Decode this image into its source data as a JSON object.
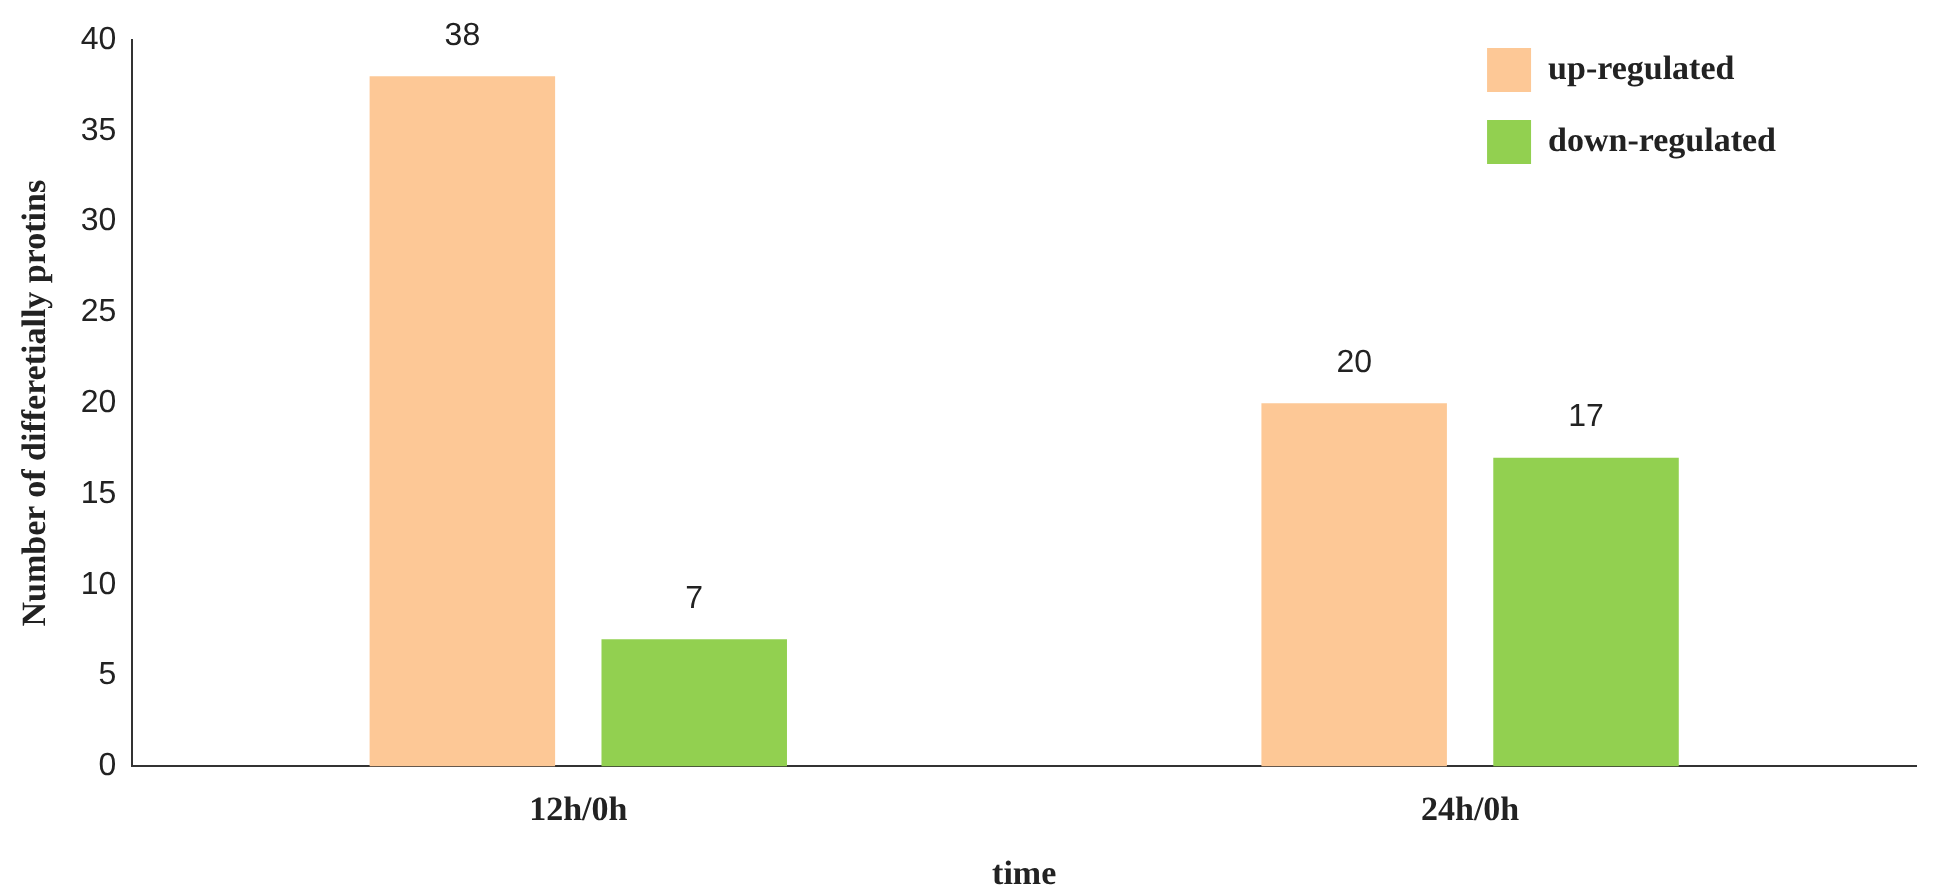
{
  "chart_data": {
    "type": "bar",
    "xlabel": "time",
    "ylabel": "Number of differetially protins",
    "categories": [
      "12h/0h",
      "24h/0h"
    ],
    "series": [
      {
        "name": "up-regulated",
        "color": "#fdc896",
        "values": [
          38,
          20
        ]
      },
      {
        "name": "down-regulated",
        "color": "#92d050",
        "values": [
          7,
          17
        ]
      }
    ],
    "ylim": [
      0,
      40
    ],
    "yticks": [
      0,
      5,
      10,
      15,
      20,
      25,
      30,
      35,
      40
    ],
    "grid": false,
    "legend": "top right",
    "data_labels": true
  }
}
